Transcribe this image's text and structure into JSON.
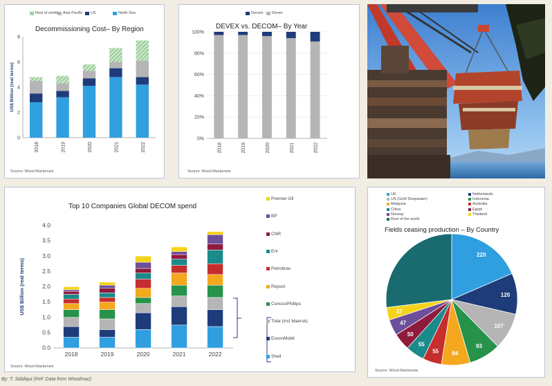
{
  "byline": "By: T. Siddiqui (Ref: Data from Woodmac)",
  "colors": {
    "teal": "#196b70",
    "skyblue": "#2f9fe0",
    "navy": "#1f3c7a",
    "grey": "#b5b5b5",
    "yellow": "#f5d31a",
    "darkgrey": "#8c8c8c",
    "purple": "#6c4e9a",
    "darkred": "#8e1b3c",
    "green": "#27924a",
    "orange": "#f4a81e",
    "lightgreen": "#7fc97f",
    "red": "#c62d2d"
  },
  "photo": {
    "description_icon": "offshore-platform-lift-photo"
  },
  "chart_data": [
    {
      "id": "region",
      "type": "bar",
      "stacked": true,
      "title": "Decommissioning Cost– By Region",
      "ylabel": "US$ Billion (real terms)",
      "xlabel": "",
      "source": "Source: Wood Mackenzie",
      "ylim": [
        0,
        8
      ],
      "yticks": [
        0,
        2,
        4,
        6,
        8
      ],
      "categories": [
        "2018",
        "2019",
        "2020",
        "2021",
        "2022"
      ],
      "series": [
        {
          "name": "North Sea",
          "color": "#2f9fe0",
          "values": [
            2.8,
            3.2,
            4.1,
            4.8,
            4.2
          ]
        },
        {
          "name": "US",
          "color": "#1f3c7a",
          "values": [
            0.7,
            0.5,
            0.6,
            0.7,
            0.6
          ]
        },
        {
          "name": "Asia Pacific",
          "color": "#b5b5b5",
          "values": [
            1.0,
            0.6,
            0.6,
            0.5,
            1.3
          ]
        },
        {
          "name": "Rest of world",
          "color": "#a8d5a8",
          "hatch": true,
          "values": [
            0.3,
            0.6,
            0.5,
            1.1,
            1.6
          ]
        }
      ],
      "legend_order": [
        "Rest of world",
        "Asia Pacific",
        "US",
        "North Sea"
      ],
      "legend_position": "top"
    },
    {
      "id": "devex",
      "type": "bar",
      "stacked": true,
      "percent": true,
      "title": "DEVEX vs. DECOM– By Year",
      "ylabel": "",
      "xlabel": "",
      "source": "Source: Wood Mackenzie",
      "ylim": [
        0,
        100
      ],
      "yticks": [
        "0%",
        "20%",
        "40%",
        "60%",
        "80%",
        "100%"
      ],
      "categories": [
        "2018",
        "2019",
        "2020",
        "2021",
        "2022"
      ],
      "series": [
        {
          "name": "Devex",
          "color": "#b5b5b5",
          "values": [
            97,
            97,
            96,
            94,
            91
          ]
        },
        {
          "name": "Decom",
          "color": "#1f3c7a",
          "values": [
            3,
            3,
            4,
            6,
            9
          ]
        }
      ],
      "legend_order": [
        "Decom",
        "Devex"
      ],
      "legend_position": "top"
    },
    {
      "id": "companies",
      "type": "bar",
      "stacked": true,
      "title": "Top 10 Companies Global DECOM spend",
      "ylabel": "US$ Billion (real terms)",
      "xlabel": "",
      "source": "Source: Wood Mackenzie",
      "ylim": [
        0,
        4.0
      ],
      "yticks": [
        "0.0",
        "0.5",
        "1.0",
        "1.5",
        "2.0",
        "2.5",
        "3.0",
        "3.5",
        "4.0"
      ],
      "categories": [
        "2018",
        "2019",
        "2020",
        "2021",
        "2022"
      ],
      "series": [
        {
          "name": "Shell",
          "color": "#2f9fe0",
          "values": [
            0.35,
            0.35,
            0.6,
            0.75,
            0.7
          ]
        },
        {
          "name": "ExxonMobil",
          "color": "#1f3c7a",
          "values": [
            0.35,
            0.25,
            0.55,
            0.6,
            0.55
          ]
        },
        {
          "name": "Total (incl Maersk)",
          "color": "#b5b5b5",
          "values": [
            0.3,
            0.35,
            0.3,
            0.35,
            0.4
          ]
        },
        {
          "name": "ConocoPhillips",
          "color": "#27924a",
          "values": [
            0.25,
            0.3,
            0.2,
            0.35,
            0.4
          ]
        },
        {
          "name": "Repsol",
          "color": "#f4a81e",
          "values": [
            0.2,
            0.25,
            0.3,
            0.4,
            0.35
          ]
        },
        {
          "name": "Petrobras",
          "color": "#c62d2d",
          "values": [
            0.15,
            0.15,
            0.3,
            0.25,
            0.35
          ]
        },
        {
          "name": "Eni",
          "color": "#1b8a8a",
          "values": [
            0.15,
            0.15,
            0.2,
            0.2,
            0.45
          ]
        },
        {
          "name": "CNR",
          "color": "#8e1b3c",
          "values": [
            0.1,
            0.15,
            0.15,
            0.15,
            0.2
          ]
        },
        {
          "name": "BP",
          "color": "#6c4e9a",
          "values": [
            0.05,
            0.1,
            0.2,
            0.1,
            0.3
          ]
        },
        {
          "name": "Premier Oil",
          "color": "#f5d31a",
          "values": [
            0.1,
            0.1,
            0.2,
            0.15,
            0.1
          ]
        }
      ],
      "legend_order": [
        "Premier Oil",
        "BP",
        "CNR",
        "Eni",
        "Petrobras",
        "Repsol",
        "ConocoPhillips",
        "Total (incl Maersk)",
        "ExxonMobil",
        "Shell"
      ],
      "legend_position": "right"
    },
    {
      "id": "country",
      "type": "pie",
      "title": "Fields ceasing production – By Country",
      "source": "Source: Wood Mackenzie",
      "slices": [
        {
          "name": "UK",
          "color": "#2f9fe0",
          "value": 220,
          "label": "220"
        },
        {
          "name": "Netherlands",
          "color": "#1f3c7a",
          "value": 120,
          "label": "120"
        },
        {
          "name": "US (GoM Deepwater)",
          "color": "#b5b5b5",
          "value": 107,
          "label": "107"
        },
        {
          "name": "Indonesia",
          "color": "#27924a",
          "value": 93,
          "label": "93"
        },
        {
          "name": "Malaysia",
          "color": "#f4a81e",
          "value": 84,
          "label": "84"
        },
        {
          "name": "Australia",
          "color": "#c62d2d",
          "value": 55,
          "label": "55"
        },
        {
          "name": "China",
          "color": "#1b8a8a",
          "value": 55,
          "label": "55"
        },
        {
          "name": "Egypt",
          "color": "#8e1b3c",
          "value": 50,
          "label": "50"
        },
        {
          "name": "Norway",
          "color": "#6c4e9a",
          "value": 47,
          "label": "47"
        },
        {
          "name": "Thailand",
          "color": "#f5d31a",
          "value": 37,
          "label": "37"
        },
        {
          "name": "Rest of the world",
          "color": "#196b70",
          "value": 320,
          "label": ""
        }
      ],
      "legend_columns": [
        [
          "UK",
          "US (GoM Deepwater)",
          "Malaysia",
          "China",
          "Norway",
          "Rest of the world"
        ],
        [
          "Netherlands",
          "Indonesia",
          "Australia",
          "Egypt",
          "Thailand"
        ]
      ],
      "legend_position": "top"
    }
  ]
}
